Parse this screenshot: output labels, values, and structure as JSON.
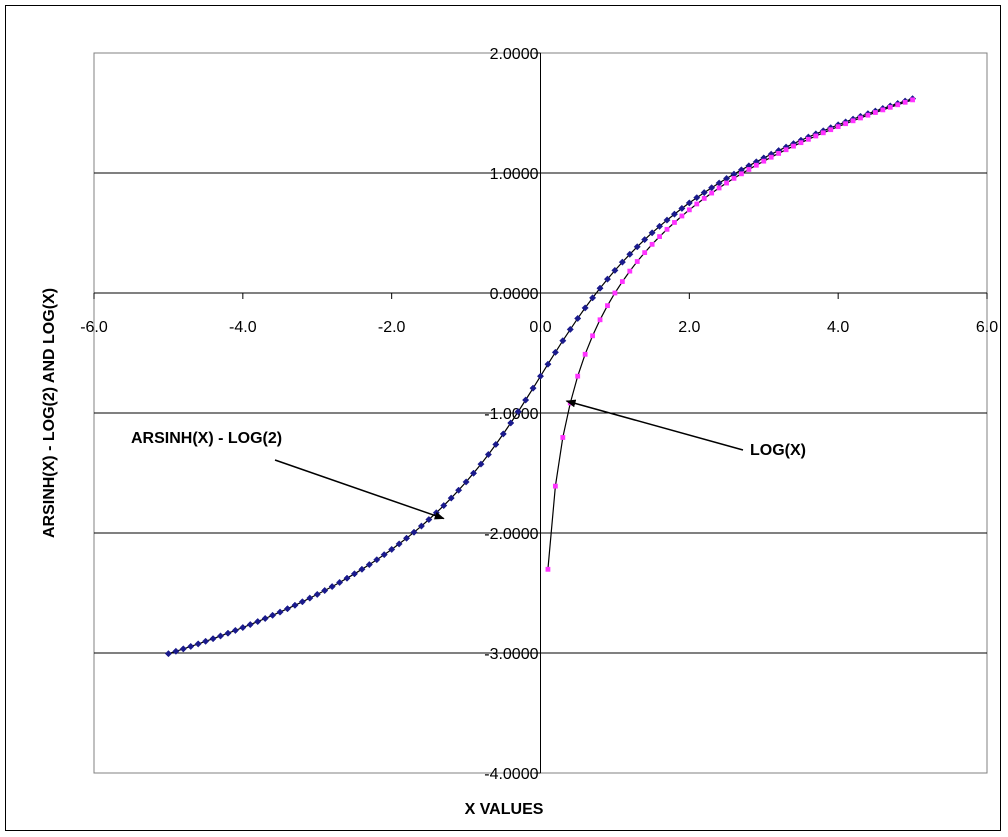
{
  "chart_data": {
    "type": "scatter",
    "title": "",
    "xlabel": "X VALUES",
    "ylabel": "ARSINH(X) - LOG(2) AND LOG(X)",
    "xlim": [
      -6.0,
      6.0
    ],
    "ylim": [
      -4.0,
      2.0
    ],
    "x_ticks": [
      "-6.0",
      "-4.0",
      "-2.0",
      "0.0",
      "2.0",
      "4.0",
      "6.0"
    ],
    "y_ticks": [
      "2.0000",
      "1.0000",
      "0.0000",
      "-1.0000",
      "-2.0000",
      "-3.0000",
      "-4.0000"
    ],
    "grid": "horizontal",
    "legend": "none",
    "series": [
      {
        "name": "ARSINH(X) - LOG(2)",
        "marker": "diamond",
        "color": "#1a1a8c",
        "x_start": -5.0,
        "x_end": 5.0,
        "x_step": 0.1
      },
      {
        "name": "LOG(X)",
        "marker": "square",
        "color": "#ff33ff",
        "x_start": 0.1,
        "x_end": 5.0,
        "x_step": 0.1
      }
    ],
    "annotations": [
      {
        "text": "ARSINH(X) - LOG(2)",
        "points_to": [
          -1.3,
          -1.88
        ]
      },
      {
        "text": "LOG(X)",
        "points_to": [
          0.35,
          -0.95
        ]
      }
    ]
  }
}
